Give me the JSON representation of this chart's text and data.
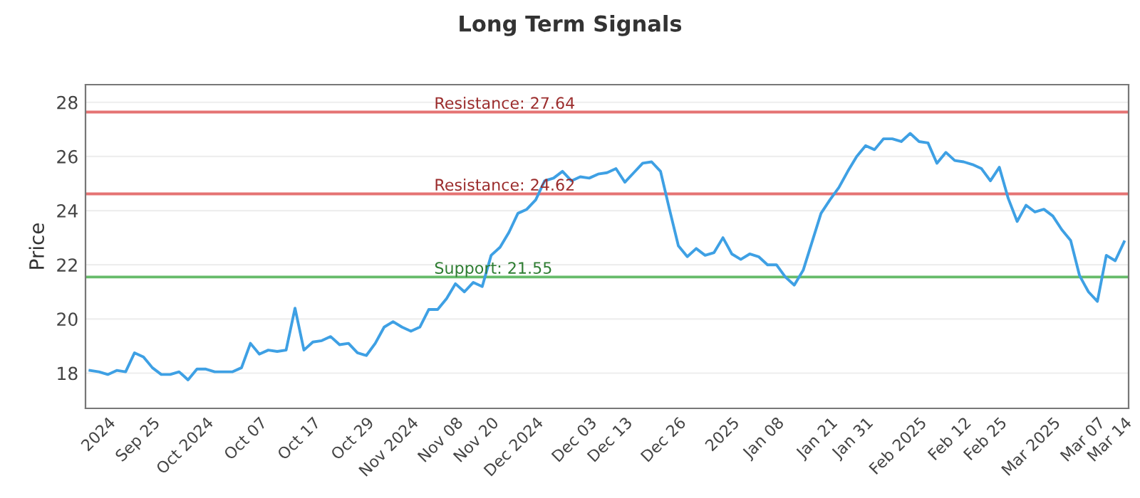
{
  "chart_data": {
    "type": "line",
    "title": "Long Term Signals",
    "ylabel": "Price",
    "categories": [
      null,
      null,
      "2024",
      null,
      null,
      null,
      null,
      "Sep 25",
      null,
      null,
      null,
      null,
      null,
      "Oct 2024",
      null,
      null,
      null,
      null,
      null,
      "Oct 07",
      null,
      null,
      null,
      null,
      null,
      "Oct 17",
      null,
      null,
      null,
      null,
      null,
      "Oct 29",
      null,
      null,
      null,
      null,
      "Nov 2024",
      null,
      null,
      null,
      null,
      "Nov 08",
      null,
      null,
      null,
      "Nov 20",
      null,
      null,
      null,
      null,
      "Dec 2024",
      null,
      null,
      null,
      null,
      null,
      "Dec 03",
      null,
      null,
      null,
      "Dec 13",
      null,
      null,
      null,
      null,
      null,
      "Dec 26",
      null,
      null,
      null,
      null,
      null,
      "2025",
      null,
      null,
      null,
      null,
      "Jan 08",
      null,
      null,
      null,
      null,
      null,
      "Jan 21",
      null,
      null,
      null,
      "Jan 31",
      null,
      null,
      null,
      null,
      null,
      "Feb 2025",
      null,
      null,
      null,
      null,
      "Feb 12",
      null,
      null,
      null,
      "Feb 25",
      null,
      null,
      null,
      null,
      null,
      "Mar 2025",
      null,
      null,
      null,
      null,
      "Mar 07",
      null,
      null,
      "Mar 14"
    ],
    "series": [
      {
        "color": "#3ea0e4",
        "values": [
          18.1,
          18.05,
          17.95,
          18.1,
          18.05,
          18.75,
          18.6,
          18.2,
          17.95,
          17.95,
          18.05,
          17.75,
          18.15,
          18.15,
          18.05,
          18.05,
          18.05,
          18.2,
          19.1,
          18.7,
          18.85,
          18.8,
          18.85,
          20.4,
          18.85,
          19.15,
          19.2,
          19.35,
          19.05,
          19.1,
          18.75,
          18.65,
          19.1,
          19.7,
          19.9,
          19.7,
          19.55,
          19.7,
          20.35,
          20.35,
          20.75,
          21.3,
          21.0,
          21.35,
          21.2,
          22.35,
          22.65,
          23.2,
          23.9,
          24.05,
          24.4,
          25.1,
          25.2,
          25.45,
          25.1,
          25.25,
          25.2,
          25.35,
          25.4,
          25.55,
          25.05,
          25.4,
          25.75,
          25.8,
          25.45,
          24.05,
          22.7,
          22.3,
          22.6,
          22.35,
          22.45,
          23.0,
          22.4,
          22.2,
          22.4,
          22.3,
          22.0,
          22.0,
          21.55,
          21.25,
          21.8,
          22.85,
          23.9,
          24.4,
          24.85,
          25.45,
          26.0,
          26.4,
          26.25,
          26.65,
          26.65,
          26.55,
          26.85,
          26.55,
          26.5,
          25.75,
          26.15,
          25.85,
          25.8,
          25.7,
          25.55,
          25.1,
          25.6,
          24.45,
          23.6,
          24.2,
          23.95,
          24.05,
          23.8,
          23.3,
          22.9,
          21.6,
          21.0,
          20.65,
          22.35,
          22.15,
          22.85
        ]
      }
    ],
    "ylim": [
      16.7,
      28.65
    ],
    "yticks": [
      18,
      20,
      22,
      24,
      26,
      28
    ],
    "grid": "y",
    "legend": false,
    "marker": "none",
    "line_style": "solid",
    "ref_lines": [
      {
        "axis": "y",
        "value": 27.64,
        "label": "Resistance: 27.64",
        "color": "#e57373"
      },
      {
        "axis": "y",
        "value": 24.62,
        "label": "Resistance: 24.62",
        "color": "#e57373"
      },
      {
        "axis": "y",
        "value": 21.55,
        "label": "Support: 21.55",
        "color": "#66bb6a"
      }
    ]
  }
}
